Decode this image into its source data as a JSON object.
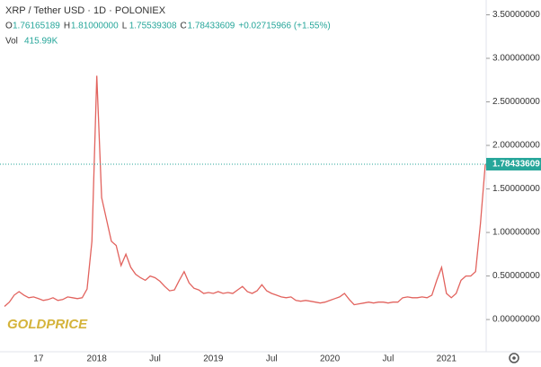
{
  "chart_data": {
    "type": "line",
    "title": "XRP / Tether USD · 1D · POLONIEX",
    "ohlc": [
      {
        "label": "O",
        "value": "1.76165189"
      },
      {
        "label": "H",
        "value": "1.81000000"
      },
      {
        "label": "L",
        "value": "1.75539308"
      },
      {
        "label": "C",
        "value": "1.78433609"
      }
    ],
    "change": "+0.02715966 (+1.55%)",
    "volume_label": "Vol",
    "volume_value": "415.99K",
    "watermark": "GOLDPRICE",
    "color": "#e2635e",
    "last_color": "#26a69a",
    "grid": false,
    "categories": [
      null,
      null,
      null,
      null,
      null,
      null,
      null,
      "17",
      null,
      null,
      null,
      null,
      null,
      null,
      null,
      null,
      null,
      null,
      null,
      "2018",
      null,
      null,
      null,
      null,
      null,
      null,
      null,
      null,
      null,
      null,
      null,
      "Jul",
      null,
      null,
      null,
      null,
      null,
      null,
      null,
      null,
      null,
      null,
      null,
      "2019",
      null,
      null,
      null,
      null,
      null,
      null,
      null,
      null,
      null,
      null,
      null,
      "Jul",
      null,
      null,
      null,
      null,
      null,
      null,
      null,
      null,
      null,
      null,
      null,
      "2020",
      null,
      null,
      null,
      null,
      null,
      null,
      null,
      null,
      null,
      null,
      null,
      "Jul",
      null,
      null,
      null,
      null,
      null,
      null,
      null,
      null,
      null,
      null,
      null,
      "2021",
      null,
      null,
      null,
      null,
      null,
      null,
      null,
      null
    ],
    "values": [
      0.15,
      0.2,
      0.28,
      0.32,
      0.28,
      0.25,
      0.26,
      0.24,
      0.22,
      0.23,
      0.25,
      0.22,
      0.23,
      0.26,
      0.25,
      0.24,
      0.25,
      0.35,
      0.9,
      2.8,
      1.4,
      1.15,
      0.9,
      0.85,
      0.62,
      0.75,
      0.6,
      0.52,
      0.48,
      0.45,
      0.5,
      0.48,
      0.44,
      0.38,
      0.33,
      0.34,
      0.45,
      0.55,
      0.42,
      0.36,
      0.34,
      0.3,
      0.31,
      0.3,
      0.32,
      0.3,
      0.31,
      0.3,
      0.34,
      0.38,
      0.32,
      0.3,
      0.33,
      0.4,
      0.33,
      0.3,
      0.28,
      0.26,
      0.25,
      0.26,
      0.22,
      0.21,
      0.22,
      0.21,
      0.2,
      0.19,
      0.2,
      0.22,
      0.24,
      0.26,
      0.3,
      0.23,
      0.17,
      0.18,
      0.19,
      0.2,
      0.19,
      0.2,
      0.2,
      0.19,
      0.2,
      0.2,
      0.25,
      0.26,
      0.25,
      0.25,
      0.26,
      0.25,
      0.28,
      0.45,
      0.6,
      0.3,
      0.25,
      0.3,
      0.45,
      0.5,
      0.5,
      0.55,
      1.1,
      1.78433609
    ],
    "ylim": [
      -0.37,
      3.67
    ],
    "yticks": [
      {
        "value": 0,
        "label": "0.00000000"
      },
      {
        "value": 0.5,
        "label": "0.50000000"
      },
      {
        "value": 1,
        "label": "1.00000000"
      },
      {
        "value": 1.5,
        "label": "1.50000000"
      },
      {
        "value": 2,
        "label": "2.00000000"
      },
      {
        "value": 2.5,
        "label": "2.50000000"
      },
      {
        "value": 3,
        "label": "3.00000000"
      },
      {
        "value": 3.5,
        "label": "3.50000000"
      }
    ]
  }
}
